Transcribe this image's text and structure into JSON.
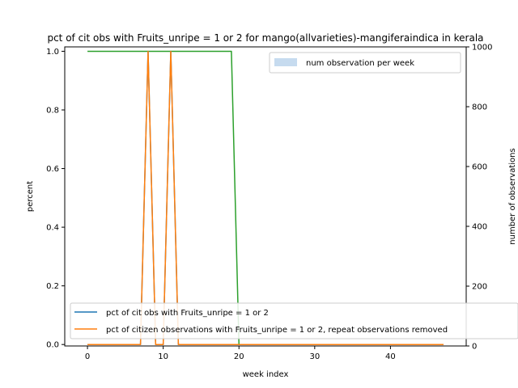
{
  "chart_data": {
    "type": "line",
    "title": "pct of cit obs with Fruits_unripe = 1 or 2 for mango(allvarieties)-mangiferaindica in kerala",
    "xlabel": "week index",
    "ylabel": "percent",
    "y2label": "number of observations",
    "xlim": [
      -3,
      50
    ],
    "ylim": [
      -0.005,
      1.015
    ],
    "y2lim": [
      0,
      1000
    ],
    "x_ticks": [
      0,
      10,
      20,
      30,
      40
    ],
    "y_ticks": [
      0.0,
      0.2,
      0.4,
      0.6,
      0.8,
      1.0
    ],
    "y2_ticks": [
      0,
      200,
      400,
      600,
      800,
      1000
    ],
    "grid": false,
    "legend_upper": {
      "placement": "top-right",
      "entries": [
        "num observation per week"
      ]
    },
    "legend_lower": {
      "placement": "bottom-left",
      "entries": [
        "pct of cit obs with Fruits_unripe = 1 or 2",
        "pct of citizen observations with Fruits_unripe = 1 or 2, repeat observations removed"
      ]
    },
    "x": [
      0,
      1,
      2,
      3,
      4,
      5,
      6,
      7,
      8,
      9,
      10,
      11,
      12,
      13,
      14,
      15,
      16,
      17,
      18,
      19,
      20,
      21,
      22,
      23,
      24,
      25,
      26,
      27,
      28,
      29,
      30,
      31,
      32,
      33,
      34,
      35,
      36,
      37,
      38,
      39,
      40,
      41,
      42,
      43,
      44,
      45,
      46,
      47
    ],
    "series": [
      {
        "name": "pct of cit obs with Fruits_unripe = 1 or 2",
        "axis": "left",
        "color": "#1f77b4",
        "values": [
          0,
          0,
          0,
          0,
          0,
          0,
          0,
          0,
          1,
          0,
          0,
          1,
          0,
          0,
          0,
          0,
          0,
          0,
          0,
          0,
          0,
          0,
          0,
          0,
          0,
          0,
          0,
          0,
          0,
          0,
          0,
          0,
          0,
          0,
          0,
          0,
          0,
          0,
          0,
          0,
          0,
          0,
          0,
          0,
          0,
          0,
          0,
          0
        ]
      },
      {
        "name": "pct of citizen observations with Fruits_unripe = 1 or 2, repeat observations removed",
        "axis": "left",
        "color": "#ff7f0e",
        "values": [
          0,
          0,
          0,
          0,
          0,
          0,
          0,
          0,
          1,
          0,
          0,
          1,
          0,
          0,
          0,
          0,
          0,
          0,
          0,
          0,
          0,
          0,
          0,
          0,
          0,
          0,
          0,
          0,
          0,
          0,
          0,
          0,
          0,
          0,
          0,
          0,
          0,
          0,
          0,
          0,
          0,
          0,
          0,
          0,
          0,
          0,
          0,
          0
        ]
      },
      {
        "name": "",
        "axis": "left",
        "color": "#2ca02c",
        "values": [
          1,
          1,
          1,
          1,
          1,
          1,
          1,
          1,
          1,
          1,
          1,
          1,
          1,
          1,
          1,
          1,
          1,
          1,
          1,
          1,
          0,
          0,
          0,
          0,
          0,
          0,
          0,
          0,
          0,
          0,
          0,
          0,
          0,
          0,
          0,
          0,
          0,
          0,
          0,
          0,
          0,
          0,
          0,
          0,
          0,
          0,
          0,
          0
        ]
      },
      {
        "name": "num observation per week",
        "axis": "right",
        "type": "bar",
        "color": "#c6dbef",
        "values": [
          1,
          1,
          1,
          1,
          1,
          1,
          1,
          1,
          1,
          1,
          1,
          1,
          1,
          1,
          1,
          1,
          1,
          1,
          1,
          1,
          1,
          1,
          1,
          1,
          1,
          1,
          1,
          1,
          1,
          1,
          1,
          1,
          1,
          1,
          1,
          1,
          1,
          1,
          1,
          1,
          1,
          1,
          1,
          1,
          1,
          1,
          1,
          1
        ]
      }
    ]
  }
}
